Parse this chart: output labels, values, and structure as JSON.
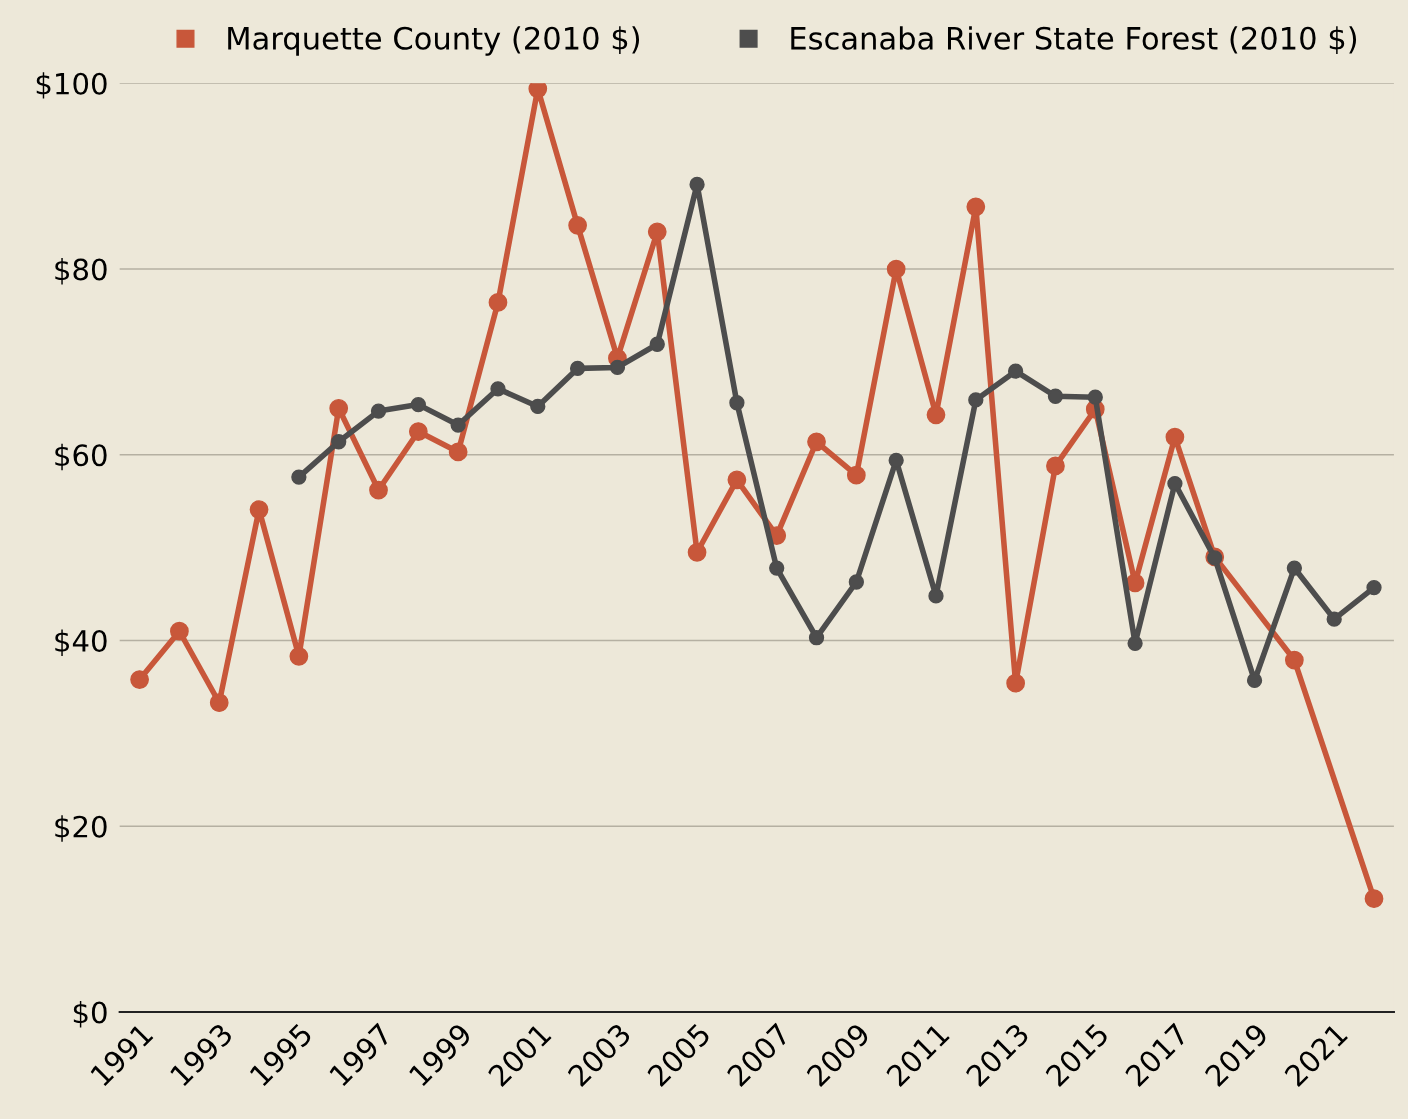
{
  "chart_data": {
    "type": "line",
    "x": [
      1991,
      1992,
      1993,
      1994,
      1995,
      1996,
      1997,
      1998,
      1999,
      2000,
      2001,
      2002,
      2003,
      2004,
      2005,
      2006,
      2007,
      2008,
      2009,
      2010,
      2011,
      2012,
      2013,
      2014,
      2015,
      2016,
      2017,
      2018,
      2019,
      2020,
      2021,
      2022
    ],
    "series": [
      {
        "name": "Marquette County (2010 $)",
        "color": "#c8573a",
        "values": [
          35.8,
          41.0,
          33.3,
          54.1,
          38.3,
          65.0,
          56.2,
          62.5,
          60.3,
          76.4,
          99.4,
          84.7,
          70.4,
          84.0,
          49.5,
          57.3,
          51.3,
          61.4,
          57.8,
          80.0,
          64.3,
          86.7,
          35.4,
          58.8,
          64.9,
          46.2,
          61.9,
          49.0,
          null,
          37.9,
          null,
          12.2
        ]
      },
      {
        "name": "Escanaba River State Forest (2010 $)",
        "color": "#4d4d4d",
        "values": [
          null,
          null,
          null,
          null,
          57.6,
          61.4,
          64.7,
          65.4,
          63.2,
          67.1,
          65.2,
          69.3,
          69.4,
          71.9,
          89.1,
          65.6,
          47.8,
          40.3,
          46.3,
          59.4,
          44.8,
          65.9,
          69.0,
          66.3,
          66.2,
          39.7,
          56.9,
          48.9,
          35.7,
          47.8,
          42.3,
          45.7
        ]
      }
    ],
    "xlim": [
      1990.5,
      2022.5
    ],
    "xticks": [
      1991,
      1993,
      1995,
      1997,
      1999,
      2001,
      2003,
      2005,
      2007,
      2009,
      2011,
      2013,
      2015,
      2017,
      2019,
      2021
    ],
    "ylim": [
      0,
      100
    ],
    "yticks": [
      {
        "value": 0,
        "label": "$0"
      },
      {
        "value": 20,
        "label": "$20"
      },
      {
        "value": 40,
        "label": "$40"
      },
      {
        "value": 60,
        "label": "$60"
      },
      {
        "value": 80,
        "label": "$80"
      },
      {
        "value": 100,
        "label": "$100"
      }
    ],
    "grid": "y",
    "legend": "top",
    "marker": "circle",
    "line_style": "solid"
  }
}
